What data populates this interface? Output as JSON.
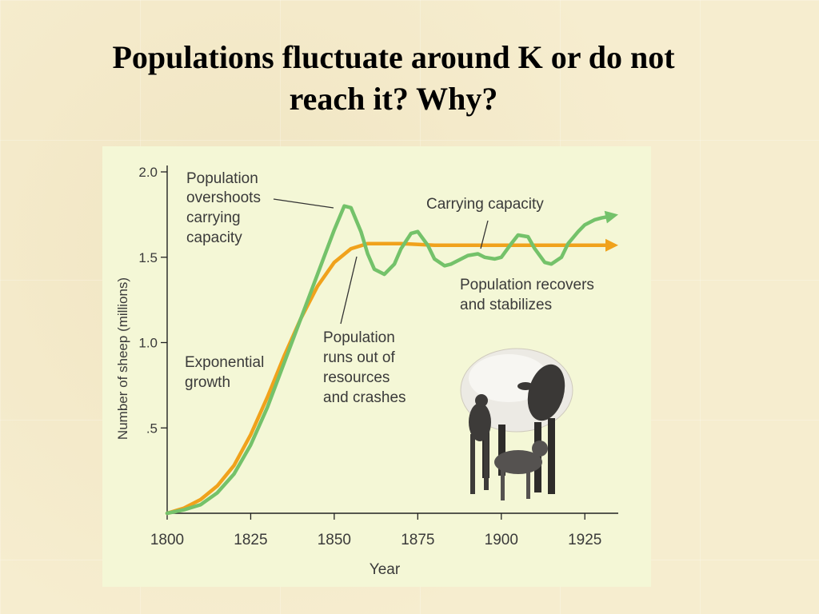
{
  "slide": {
    "title_line1": "Populations fluctuate around K or do not",
    "title_line2": "reach it?  Why?"
  },
  "chart_data": {
    "type": "line",
    "xlabel": "Year",
    "ylabel": "Number of sheep (millions)",
    "xlim": [
      1800,
      1935
    ],
    "ylim": [
      0,
      2.0
    ],
    "x_ticks": [
      1800,
      1825,
      1850,
      1875,
      1900,
      1925
    ],
    "y_ticks": [
      {
        "value": 2.0,
        "label": "2.0"
      },
      {
        "value": 1.5,
        "label": "1.5"
      },
      {
        "value": 1.0,
        "label": "1.0"
      },
      {
        "value": 0.5,
        "label": ".5"
      }
    ],
    "grid": false,
    "colors": {
      "population": "#74c26a",
      "capacity": "#f0a21c"
    },
    "series": [
      {
        "key": "population",
        "x": [
          1800,
          1805,
          1810,
          1815,
          1820,
          1825,
          1830,
          1835,
          1840,
          1845,
          1850,
          1853,
          1855,
          1858,
          1860,
          1862,
          1865,
          1868,
          1870,
          1873,
          1875,
          1878,
          1880,
          1883,
          1885,
          1888,
          1890,
          1893,
          1895,
          1898,
          1900,
          1903,
          1905,
          1908,
          1910,
          1913,
          1915,
          1918,
          1920,
          1923,
          1925,
          1928,
          1930,
          1935
        ],
        "y": [
          0.0,
          0.02,
          0.05,
          0.12,
          0.23,
          0.4,
          0.62,
          0.88,
          1.14,
          1.4,
          1.66,
          1.8,
          1.79,
          1.65,
          1.52,
          1.43,
          1.4,
          1.46,
          1.55,
          1.64,
          1.65,
          1.57,
          1.49,
          1.45,
          1.46,
          1.49,
          1.51,
          1.52,
          1.5,
          1.49,
          1.5,
          1.58,
          1.63,
          1.62,
          1.55,
          1.47,
          1.46,
          1.5,
          1.58,
          1.65,
          1.69,
          1.72,
          1.73,
          1.75
        ]
      },
      {
        "key": "capacity",
        "x": [
          1800,
          1805,
          1810,
          1815,
          1820,
          1825,
          1830,
          1835,
          1840,
          1845,
          1850,
          1855,
          1860,
          1865,
          1870,
          1880,
          1900,
          1920,
          1935
        ],
        "y": [
          0.0,
          0.03,
          0.08,
          0.16,
          0.28,
          0.46,
          0.68,
          0.92,
          1.14,
          1.33,
          1.47,
          1.55,
          1.58,
          1.58,
          1.58,
          1.57,
          1.57,
          1.57,
          1.57
        ]
      }
    ],
    "annotations": {
      "overshoot": [
        "Population",
        "overshoots",
        "carrying",
        "capacity"
      ],
      "carrying_capacity": "Carrying capacity",
      "recovers": [
        "Population recovers",
        "and stabilizes"
      ],
      "crashes": [
        "Population",
        "runs out of",
        "resources",
        "and crashes"
      ],
      "exponential": [
        "Exponential",
        "growth"
      ]
    }
  },
  "illustration": {
    "icon": "sheep-with-lambs-icon"
  }
}
